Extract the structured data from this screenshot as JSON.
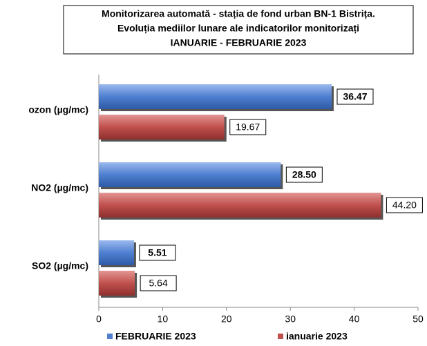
{
  "chart_data": {
    "type": "hbar",
    "title": [
      "Monitorizarea automată  - stația de fond urban BN-1 Bistrița.",
      "Evoluția mediilor lunare ale indicatorilor monitorizați",
      "IANUARIE - FEBRUARIE 2023"
    ],
    "categories": [
      "ozon (µg/mc)",
      "NO2 (µg/mc)",
      "SO2 (µg/mc)"
    ],
    "series": [
      {
        "name": "FEBRUARIE 2023",
        "color": "#4f7fd0",
        "values": [
          36.47,
          28.5,
          5.51
        ],
        "value_labels": [
          "36.47",
          "28.50",
          "5.51"
        ]
      },
      {
        "name": "ianuarie 2023",
        "color": "#c0504d",
        "values": [
          19.67,
          44.2,
          5.64
        ],
        "value_labels": [
          "19.67",
          "44.20",
          "5.64"
        ]
      }
    ],
    "xlim": [
      0,
      50
    ],
    "xticks": [
      0,
      10,
      20,
      30,
      40,
      50
    ],
    "legend": "bottom"
  }
}
